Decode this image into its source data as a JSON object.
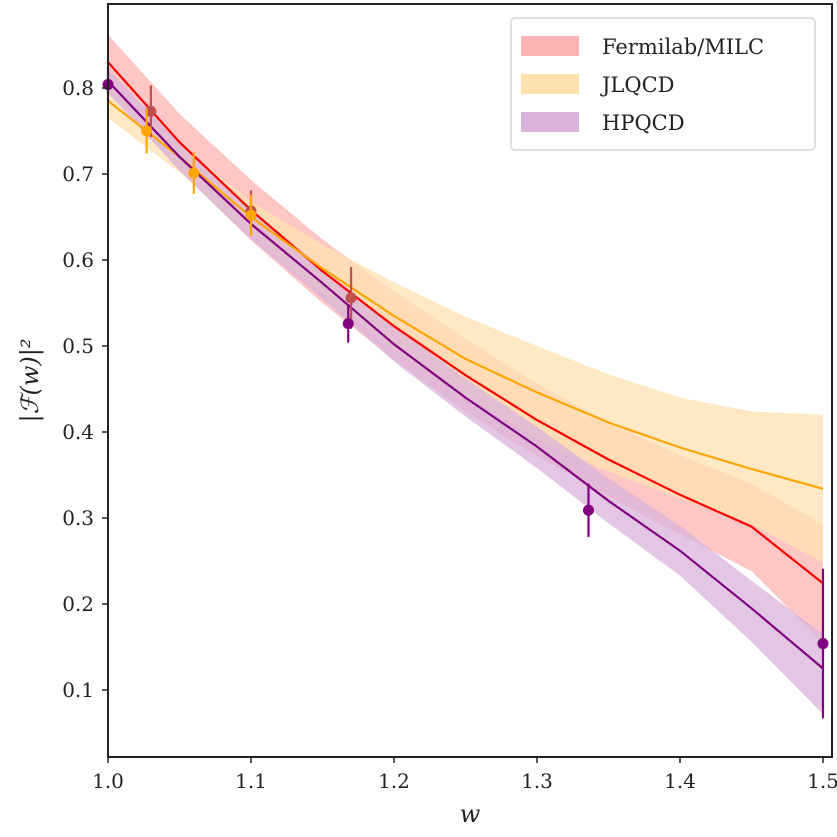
{
  "chart_data": {
    "type": "line",
    "title": "",
    "xlabel": "w",
    "ylabel": "|ℱ(w)|²",
    "xlim": [
      1.0,
      1.5
    ],
    "ylim": [
      0.03,
      0.9
    ],
    "x_ticks": [
      1.0,
      1.1,
      1.2,
      1.3,
      1.4,
      1.5
    ],
    "x_tick_labels": [
      "1.0",
      "1.1",
      "1.2",
      "1.3",
      "1.4",
      "1.5"
    ],
    "y_ticks": [
      0.1,
      0.2,
      0.3,
      0.4,
      0.5,
      0.6,
      0.7,
      0.8
    ],
    "y_tick_labels": [
      "0.1",
      "0.2",
      "0.3",
      "0.4",
      "0.5",
      "0.6",
      "0.7",
      "0.8"
    ],
    "grid": false,
    "legend": {
      "position": "top-right"
    },
    "series": [
      {
        "name": "Fermilab/MILC",
        "band_color": "#ffb3b3",
        "line_color": "#ff0000",
        "point_color": "#c0504d",
        "curve": {
          "x": [
            1.0,
            1.05,
            1.1,
            1.15,
            1.2,
            1.25,
            1.3,
            1.35,
            1.4,
            1.45,
            1.5
          ],
          "y": [
            0.83,
            0.737,
            0.658,
            0.587,
            0.523,
            0.466,
            0.414,
            0.368,
            0.327,
            0.29,
            0.224
          ],
          "upper": [
            0.862,
            0.77,
            0.693,
            0.624,
            0.563,
            0.508,
            0.456,
            0.411,
            0.373,
            0.34,
            0.292
          ],
          "lower": [
            0.798,
            0.704,
            0.623,
            0.55,
            0.484,
            0.424,
            0.372,
            0.325,
            0.281,
            0.238,
            0.155
          ]
        },
        "points": [
          {
            "x": 1.03,
            "y": 0.773,
            "err": 0.03
          },
          {
            "x": 1.1,
            "y": 0.657,
            "err": 0.024
          },
          {
            "x": 1.17,
            "y": 0.556,
            "err": 0.036
          }
        ]
      },
      {
        "name": "JLQCD",
        "band_color": "#ffe1b0",
        "line_color": "#ffa500",
        "point_color": "#ffa500",
        "curve": {
          "x": [
            1.0,
            1.05,
            1.1,
            1.15,
            1.2,
            1.25,
            1.3,
            1.35,
            1.4,
            1.45,
            1.5
          ],
          "y": [
            0.785,
            0.72,
            0.65,
            0.59,
            0.535,
            0.485,
            0.446,
            0.411,
            0.382,
            0.357,
            0.334
          ],
          "upper": [
            0.8,
            0.735,
            0.668,
            0.618,
            0.574,
            0.534,
            0.5,
            0.467,
            0.44,
            0.424,
            0.42
          ],
          "lower": [
            0.765,
            0.702,
            0.629,
            0.56,
            0.497,
            0.441,
            0.392,
            0.354,
            0.323,
            0.293,
            0.248
          ]
        },
        "points": [
          {
            "x": 1.027,
            "y": 0.75,
            "err": 0.026
          },
          {
            "x": 1.06,
            "y": 0.701,
            "err": 0.024
          },
          {
            "x": 1.1,
            "y": 0.652,
            "err": 0.024
          }
        ]
      },
      {
        "name": "HPQCD",
        "band_color": "#d9b3db",
        "line_color": "#800080",
        "point_color": "#800080",
        "curve": {
          "x": [
            1.0,
            1.05,
            1.1,
            1.15,
            1.2,
            1.25,
            1.3,
            1.35,
            1.4,
            1.45,
            1.5
          ],
          "y": [
            0.808,
            0.72,
            0.642,
            0.573,
            0.502,
            0.44,
            0.383,
            0.32,
            0.262,
            0.195,
            0.125
          ],
          "upper": [
            0.822,
            0.735,
            0.659,
            0.591,
            0.523,
            0.462,
            0.406,
            0.346,
            0.291,
            0.227,
            0.165
          ],
          "lower": [
            0.794,
            0.704,
            0.624,
            0.555,
            0.482,
            0.418,
            0.358,
            0.294,
            0.233,
            0.156,
            0.072
          ]
        },
        "points": [
          {
            "x": 1.0,
            "y": 0.804,
            "err": 0.02
          },
          {
            "x": 1.168,
            "y": 0.526,
            "err": 0.022
          },
          {
            "x": 1.336,
            "y": 0.309,
            "err": 0.031
          },
          {
            "x": 1.5,
            "y": 0.154,
            "err": 0.087
          }
        ]
      }
    ]
  }
}
